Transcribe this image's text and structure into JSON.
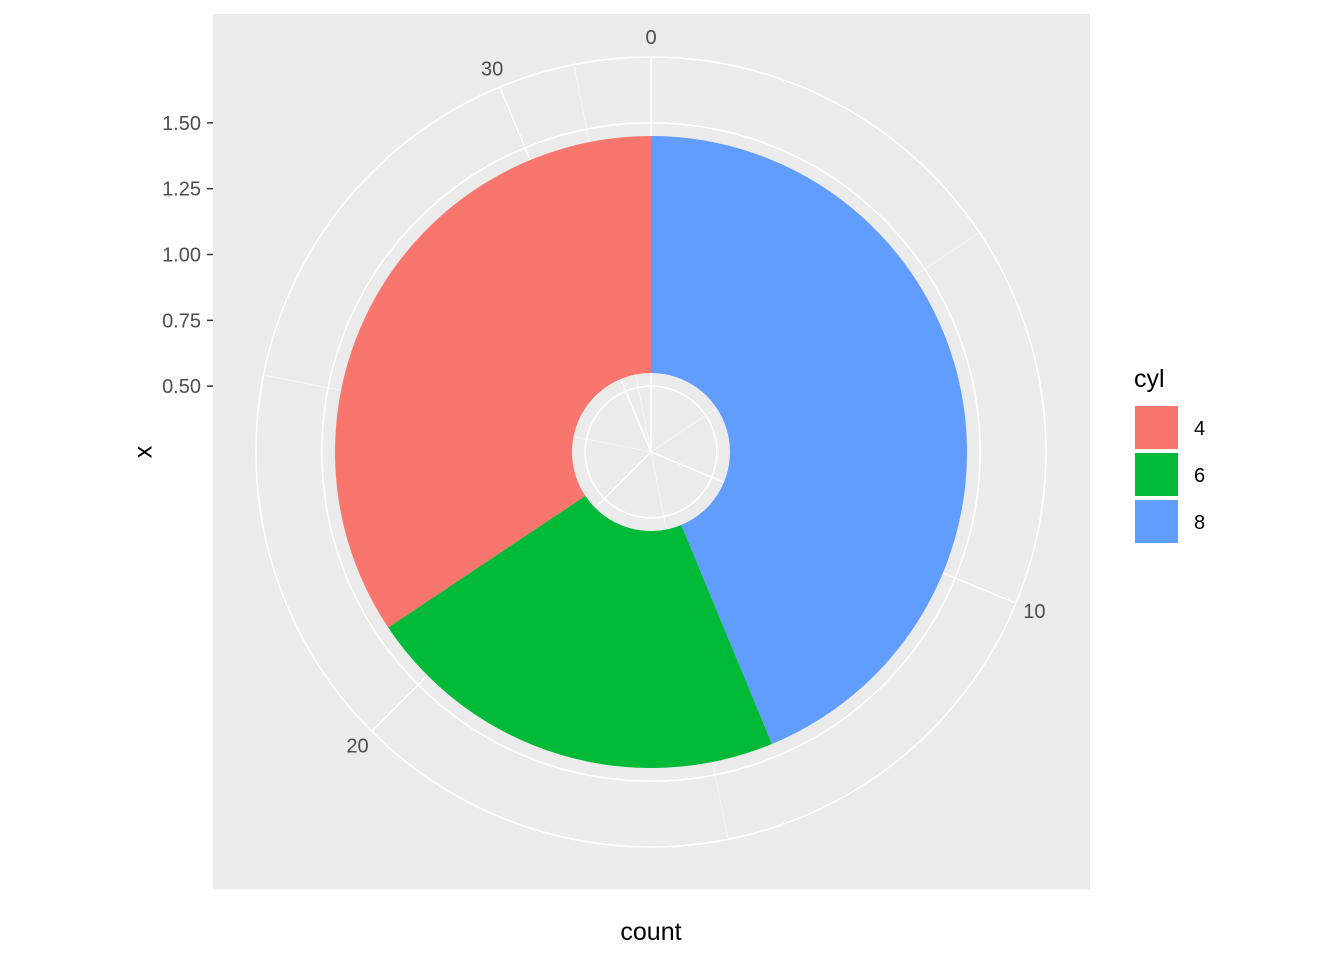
{
  "chart_data": {
    "type": "pie",
    "coord": "polar",
    "xlabel": "count",
    "ylabel": "x",
    "categories": [
      "4",
      "6",
      "8"
    ],
    "values": [
      11,
      7,
      14
    ],
    "count_total": 32,
    "count_ticks": [
      "0",
      "10",
      "20",
      "30"
    ],
    "count_tick_values": [
      0,
      10,
      20,
      30
    ],
    "x_ticks": [
      "0.50",
      "0.75",
      "1.00",
      "1.25",
      "1.50"
    ],
    "x_tick_values": [
      0.5,
      0.75,
      1.0,
      1.25,
      1.5
    ],
    "ring_x_range": [
      0.55,
      1.45
    ],
    "radial_range": [
      0.25,
      1.75
    ],
    "legend": {
      "title": "cyl",
      "position": "right",
      "entries": [
        {
          "label": "4",
          "color": "#F8766D"
        },
        {
          "label": "6",
          "color": "#00BA38"
        },
        {
          "label": "8",
          "color": "#619CFF"
        }
      ]
    },
    "colors": {
      "panel_background": "#EBEBEB",
      "grid": "#FFFFFF",
      "tick_text": "#4D4D4D",
      "tick_mark": "#333333"
    },
    "grid": true
  }
}
